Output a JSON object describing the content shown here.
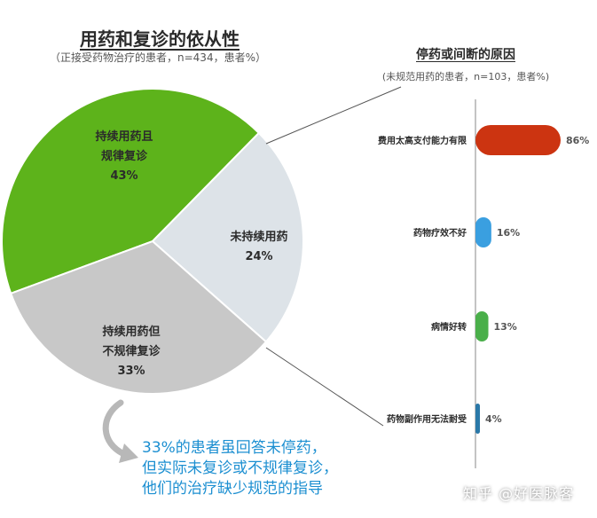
{
  "left_chart": {
    "title": "用药和复诊的依从性",
    "subtitle": "（正接受药物治疗的患者，n=434，患者%）"
  },
  "right_chart": {
    "title": "停药或间断的原因",
    "subtitle": "(未规范用药的患者，n=103，患者%)"
  },
  "note_lines": [
    "33%的患者虽回答未停药，",
    "但实际未复诊或不规律复诊，",
    "他们的治疗缺少规范的指导"
  ],
  "watermark": "知乎 @好医脉客",
  "colors": {
    "green": "#5db31b",
    "light_gray": "#dde3e8",
    "gray": "#c8c8c8",
    "red": "#cc3411",
    "blue": "#3a9fe0",
    "green_bar": "#4aaf4a",
    "teal": "#2a78a8",
    "note_blue": "#1c8fd1"
  },
  "chart_data": [
    {
      "type": "pie",
      "title": "用药和复诊的依从性",
      "subtitle": "（正接受药物治疗的患者，n=434，患者%）",
      "slices": [
        {
          "lines": [
            "持续用药且",
            "规律复诊"
          ],
          "value": 43,
          "value_label": "43%",
          "color": "#5db31b"
        },
        {
          "lines": [
            "未持续用药"
          ],
          "value": 24,
          "value_label": "24%",
          "color": "#dde3e8"
        },
        {
          "lines": [
            "持续用药但",
            "不规律复诊"
          ],
          "value": 33,
          "value_label": "33%",
          "color": "#c8c8c8"
        }
      ]
    },
    {
      "type": "bar",
      "orientation": "horizontal",
      "title": "停药或间断的原因",
      "subtitle": "(未规范用药的患者，n=103，患者%)",
      "categories": [
        "费用太高支付能力有限",
        "药物疗效不好",
        "病情好转",
        "药物副作用无法耐受"
      ],
      "values": [
        86,
        16,
        13,
        4
      ],
      "value_labels": [
        "86%",
        "16%",
        "13%",
        "4%"
      ],
      "colors": [
        "#cc3411",
        "#3a9fe0",
        "#4aaf4a",
        "#2a78a8"
      ],
      "xlim": [
        0,
        86
      ]
    }
  ]
}
